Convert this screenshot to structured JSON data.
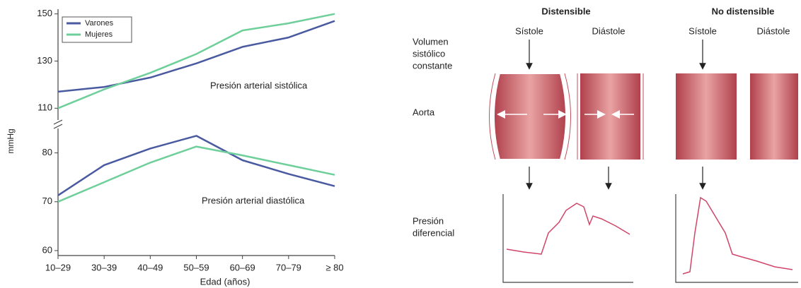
{
  "chart_data": [
    {
      "type": "line",
      "series": [
        {
          "name": "Varones",
          "color": "#4a5aa0",
          "values": [
            117,
            119,
            123,
            129,
            136,
            140,
            147
          ]
        },
        {
          "name": "Mujeres",
          "color": "#6fcf9a",
          "values": [
            110,
            118,
            125,
            133,
            143,
            146,
            150
          ]
        }
      ],
      "ylim": [
        105,
        152
      ],
      "yticks": [
        110,
        130,
        150
      ],
      "annotation": "Presión arterial sistólica",
      "legend": "upper left"
    },
    {
      "type": "line",
      "categories": [
        "10–29",
        "30–39",
        "40–49",
        "50–59",
        "60–69",
        "70–79",
        "≥ 80"
      ],
      "series": [
        {
          "color": "#4a5aa0",
          "values": [
            71.3,
            77.5,
            80.9,
            83.5,
            78.5,
            75.7,
            73.2
          ]
        },
        {
          "color": "#6fcf9a",
          "values": [
            70,
            74,
            78,
            81.3,
            79.5,
            77.5,
            75.5
          ]
        }
      ],
      "ylim": [
        60,
        85
      ],
      "yticks": [
        60,
        70,
        80
      ],
      "annotation": "Presión arterial diastólica",
      "xlabel": "Edad (años)",
      "ylabel": "mmHg"
    }
  ],
  "diagram": {
    "columns": [
      {
        "title": "Distensible",
        "phases": [
          "Sístole",
          "Diástole"
        ]
      },
      {
        "title": "No distensible",
        "phases": [
          "Sístole",
          "Diástole"
        ]
      }
    ],
    "rows": [
      [
        "Volumen",
        "sistólico",
        "constante"
      ],
      [
        "Aorta"
      ],
      [
        "Presión",
        "diferencial"
      ]
    ]
  }
}
